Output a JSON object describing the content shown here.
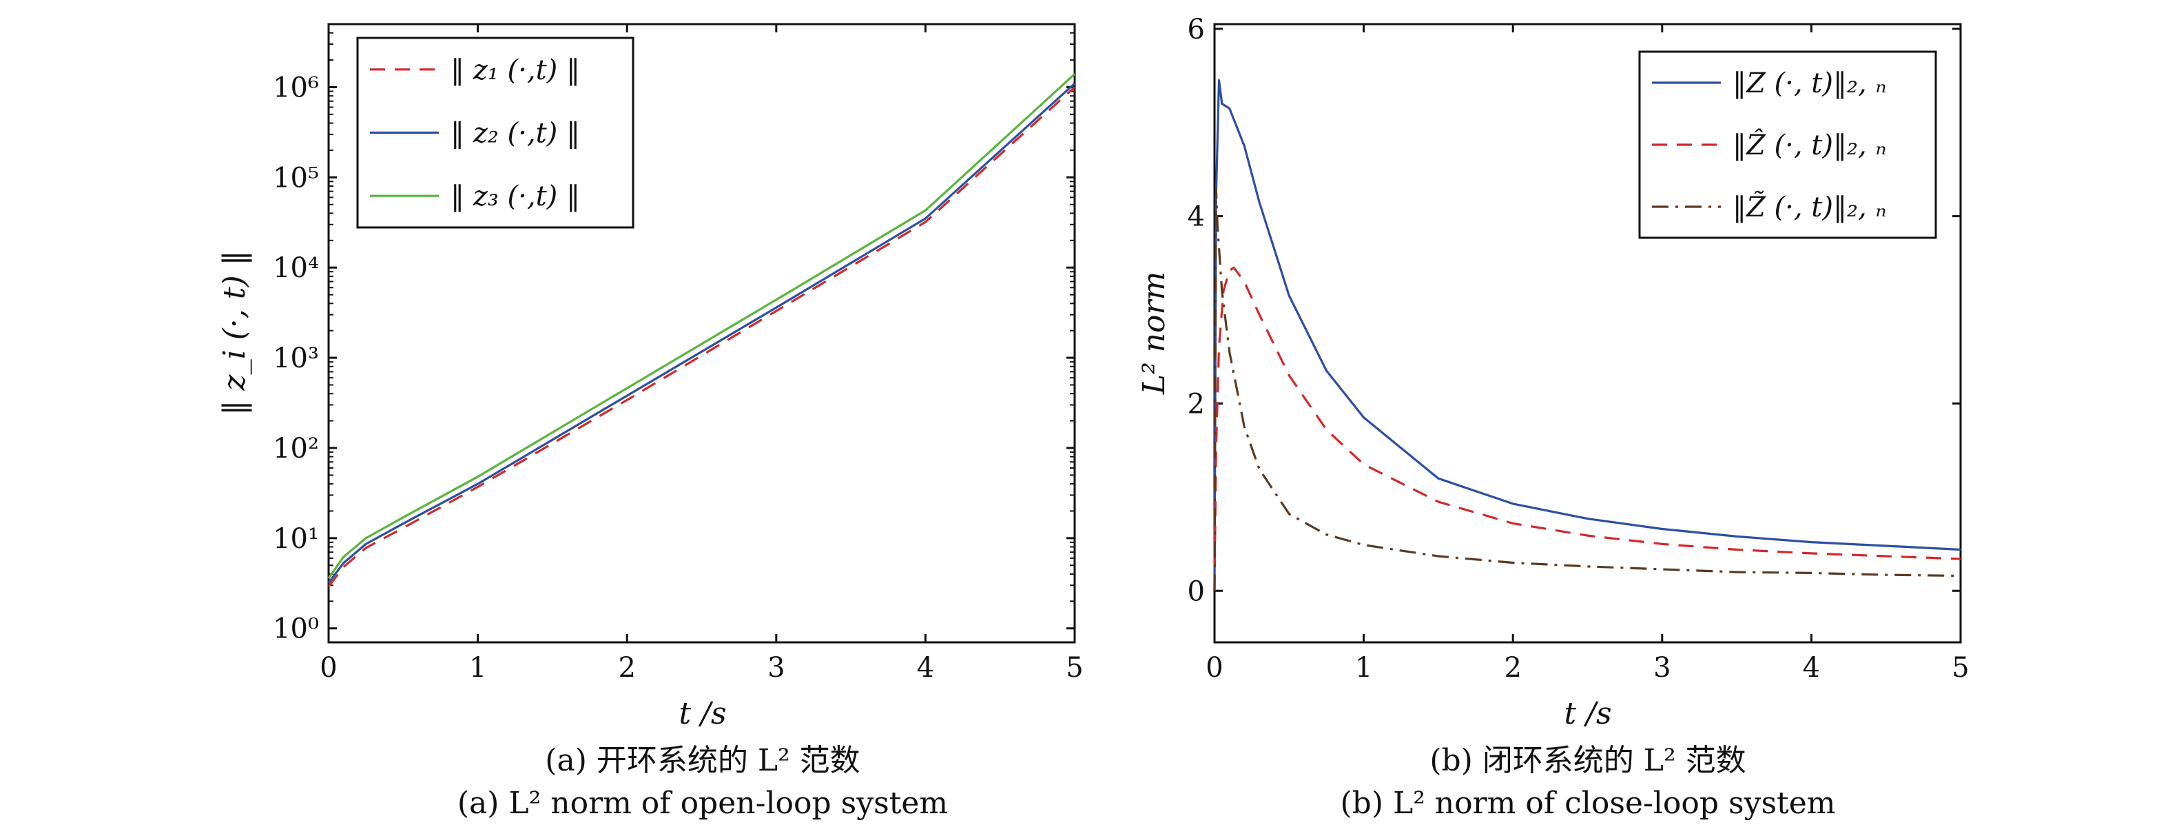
{
  "colors": {
    "red": "#d62728",
    "blue": "#2b4fa3",
    "green": "#59b53a",
    "brown": "#5a3a22",
    "axis": "#111111"
  },
  "chart_data": [
    {
      "type": "line",
      "y_scale": "log",
      "xlim": [
        0,
        5
      ],
      "ylim": [
        0.7,
        5000000
      ],
      "xlabel": "t /s",
      "ylabel": "‖ z_i (·, t) ‖",
      "caption_cn": "(a) 开环系统的 L² 范数",
      "caption_en": "(a) L² norm of open-loop system",
      "x_ticks": [
        0,
        1,
        2,
        3,
        4,
        5
      ],
      "x_tick_labels": [
        "0",
        "1",
        "2",
        "3",
        "4",
        "5"
      ],
      "y_ticks": [
        1,
        10,
        100,
        1000,
        10000,
        100000,
        1000000
      ],
      "y_tick_labels": [
        "10⁰",
        "10¹",
        "10²",
        "10³",
        "10⁴",
        "10⁵",
        "10⁶"
      ],
      "legend_position": "top-left",
      "series": [
        {
          "name": "‖ z₁ (·,t) ‖",
          "color": "red",
          "style": "dashed",
          "x": [
            0,
            0.1,
            0.25,
            0.5,
            1,
            2,
            3,
            4,
            5
          ],
          "y": [
            2.9,
            4.8,
            7.8,
            13,
            37,
            340,
            3300,
            32000,
            1000000
          ]
        },
        {
          "name": "‖ z₂ (·,t) ‖",
          "color": "blue",
          "style": "solid",
          "x": [
            0,
            0.1,
            0.25,
            0.5,
            1,
            2,
            3,
            4,
            5
          ],
          "y": [
            3.2,
            5.3,
            8.6,
            14.5,
            40,
            380,
            3600,
            35000,
            1100000
          ]
        },
        {
          "name": "‖ z₃ (·,t) ‖",
          "color": "green",
          "style": "solid",
          "x": [
            0,
            0.1,
            0.25,
            0.5,
            1,
            2,
            3,
            4,
            5
          ],
          "y": [
            3.6,
            6.2,
            10,
            17,
            48,
            460,
            4400,
            43000,
            1400000
          ]
        }
      ]
    },
    {
      "type": "line",
      "xlim": [
        0,
        5
      ],
      "ylim": [
        -0.55,
        6.05
      ],
      "xlabel": "t /s",
      "ylabel": "L² norm",
      "caption_cn": "(b) 闭环系统的 L² 范数",
      "caption_en": "(b) L² norm of close-loop system",
      "x_ticks": [
        0,
        1,
        2,
        3,
        4,
        5
      ],
      "x_tick_labels": [
        "0",
        "1",
        "2",
        "3",
        "4",
        "5"
      ],
      "y_ticks": [
        0,
        2,
        4,
        6
      ],
      "y_tick_labels": [
        "0",
        "2",
        "4",
        "6"
      ],
      "legend_position": "top-right",
      "series": [
        {
          "name": "‖Z (·, t)‖₂, ₙ",
          "color": "blue",
          "style": "solid",
          "x": [
            0,
            0.01,
            0.03,
            0.05,
            0.1,
            0.2,
            0.3,
            0.5,
            0.75,
            1,
            1.5,
            2,
            2.5,
            3,
            3.5,
            4,
            4.5,
            5
          ],
          "y": [
            0,
            4.2,
            5.45,
            5.2,
            5.15,
            4.75,
            4.15,
            3.15,
            2.35,
            1.85,
            1.2,
            0.93,
            0.77,
            0.66,
            0.58,
            0.52,
            0.48,
            0.44
          ]
        },
        {
          "name": "‖Ẑ (·, t)‖₂, ₙ",
          "color": "red",
          "style": "dashed",
          "x": [
            0,
            0.01,
            0.03,
            0.06,
            0.1,
            0.13,
            0.2,
            0.3,
            0.5,
            0.75,
            1,
            1.5,
            2,
            2.5,
            3,
            3.5,
            4,
            4.5,
            5
          ],
          "y": [
            0,
            1.5,
            2.6,
            3.2,
            3.42,
            3.45,
            3.3,
            2.95,
            2.3,
            1.72,
            1.35,
            0.95,
            0.72,
            0.59,
            0.5,
            0.44,
            0.4,
            0.37,
            0.34
          ]
        },
        {
          "name": "‖Z̃ (·, t)‖₂, ₙ",
          "color": "brown",
          "style": "dashdot",
          "x": [
            0,
            0.01,
            0.02,
            0.05,
            0.1,
            0.2,
            0.3,
            0.5,
            0.75,
            1,
            1.5,
            2,
            2.5,
            3,
            3.5,
            4,
            4.5,
            5
          ],
          "y": [
            0,
            4.3,
            3.9,
            3.2,
            2.55,
            1.75,
            1.3,
            0.82,
            0.6,
            0.49,
            0.37,
            0.3,
            0.26,
            0.23,
            0.2,
            0.19,
            0.17,
            0.16
          ]
        }
      ]
    }
  ]
}
